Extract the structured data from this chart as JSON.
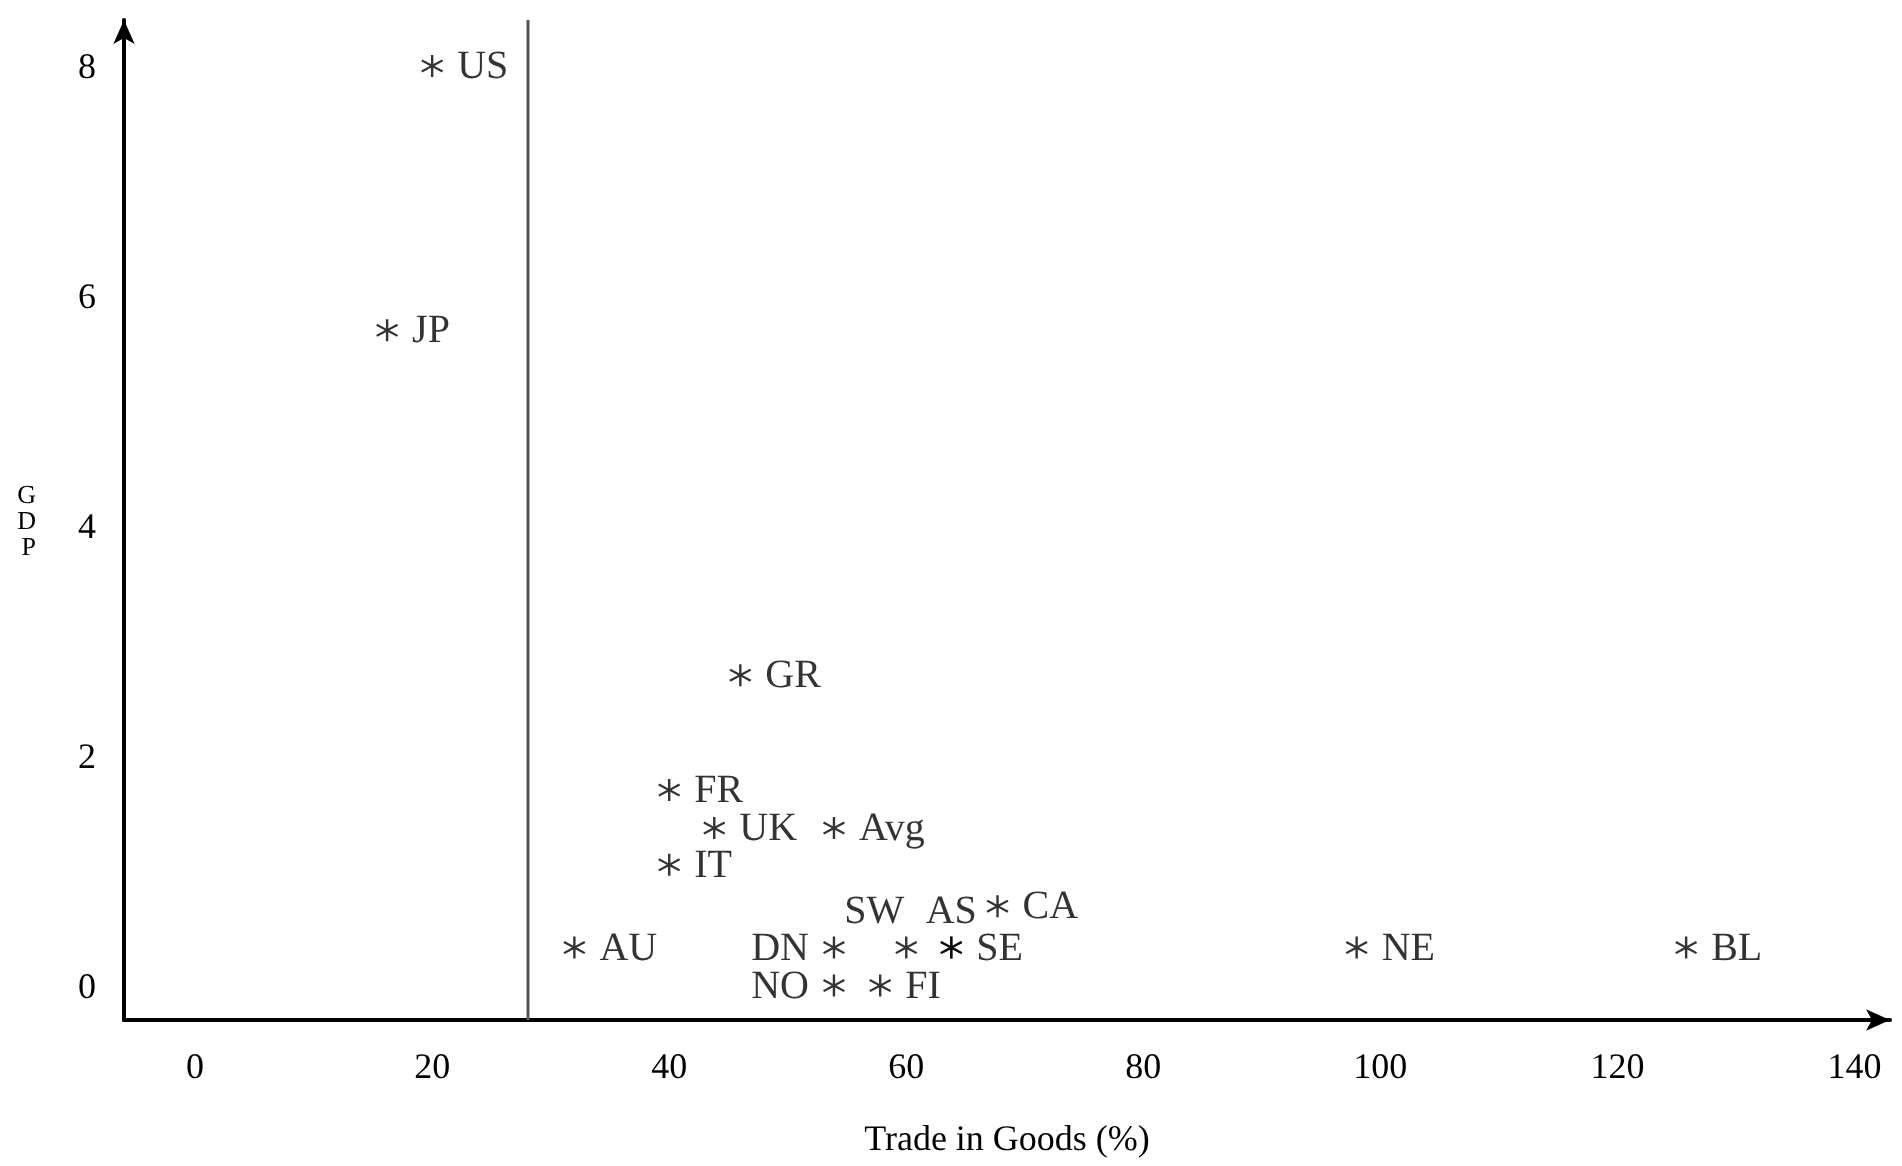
{
  "chart_data": {
    "type": "scatter",
    "xlabel": "Trade in Goods (%)",
    "ylabel": "GDP",
    "xlim": [
      -6,
      143
    ],
    "ylim": [
      -0.3,
      8.4
    ],
    "xticks": [
      0,
      20,
      40,
      60,
      80,
      100,
      120,
      140
    ],
    "yticks": [
      0,
      2,
      4,
      6,
      8
    ],
    "grid": false,
    "marker": "star",
    "series": [
      {
        "color": "#000000",
        "x": [
          20,
          16.2,
          46,
          40,
          43.8,
          53.9,
          40,
          60,
          63.8,
          67.7,
          32,
          53.9,
          63.8,
          53.9,
          57.8,
          98,
          125.8
        ],
        "values": [
          8.0,
          5.7,
          2.7,
          1.7,
          1.37,
          1.37,
          1.05,
          0.33,
          0.33,
          0.69,
          0.33,
          0.33,
          0.33,
          0,
          0,
          0.33,
          0.33
        ],
        "value_labels": [
          "US",
          "JP",
          "GR",
          "FR",
          "UK",
          "Avg",
          "IT",
          "SW",
          "AS",
          "CA",
          "AU",
          "DN",
          "SE",
          "NO",
          "FI",
          "NE",
          "BL"
        ]
      }
    ],
    "ref_lines": [
      {
        "axis": "x",
        "value": 28,
        "color": "#555555"
      }
    ]
  }
}
